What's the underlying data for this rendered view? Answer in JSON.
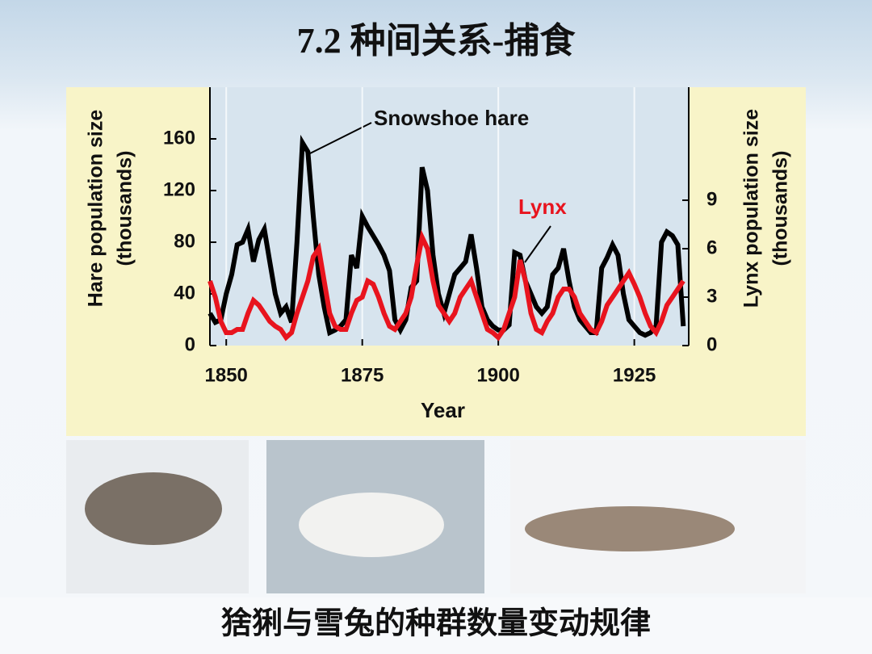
{
  "title": "7.2  种间关系-捕食",
  "caption": "猞猁与雪兔的种群数量变动规律",
  "chart_data": {
    "type": "line",
    "xlabel": "Year",
    "ylabel": [
      "Hare population size",
      "(thousands)"
    ],
    "y2label": [
      "Lynx population size",
      "(thousands)"
    ],
    "annotations": [
      "Snowshoe hare",
      "Lynx"
    ],
    "xlim": [
      1847,
      1935
    ],
    "xticks": [
      1850,
      1875,
      1900,
      1925
    ],
    "ylim": [
      0,
      200
    ],
    "yticks": [
      0,
      40,
      80,
      120,
      160
    ],
    "y2lim": [
      0,
      16
    ],
    "y2ticks": [
      0,
      3,
      6,
      9
    ],
    "grid": "x",
    "x": [
      1847,
      1848,
      1849,
      1850,
      1851,
      1852,
      1853,
      1854,
      1855,
      1856,
      1857,
      1858,
      1859,
      1860,
      1861,
      1862,
      1863,
      1864,
      1865,
      1866,
      1867,
      1868,
      1869,
      1870,
      1871,
      1872,
      1873,
      1874,
      1875,
      1876,
      1877,
      1878,
      1879,
      1880,
      1881,
      1882,
      1883,
      1884,
      1885,
      1886,
      1887,
      1888,
      1889,
      1890,
      1891,
      1892,
      1893,
      1894,
      1895,
      1896,
      1897,
      1898,
      1899,
      1900,
      1901,
      1902,
      1903,
      1904,
      1905,
      1906,
      1907,
      1908,
      1909,
      1910,
      1911,
      1912,
      1913,
      1914,
      1915,
      1916,
      1917,
      1918,
      1919,
      1920,
      1921,
      1922,
      1923,
      1924,
      1925,
      1926,
      1927,
      1928,
      1929,
      1930,
      1931,
      1932,
      1933,
      1934
    ],
    "series": [
      {
        "name": "Snowshoe hare",
        "color": "#000000",
        "values": [
          25,
          18,
          20,
          40,
          55,
          78,
          80,
          90,
          65,
          82,
          90,
          65,
          40,
          25,
          30,
          18,
          80,
          157,
          150,
          100,
          55,
          30,
          10,
          12,
          15,
          20,
          70,
          60,
          100,
          92,
          85,
          78,
          70,
          58,
          20,
          12,
          20,
          45,
          50,
          138,
          120,
          70,
          40,
          25,
          40,
          55,
          60,
          65,
          86,
          60,
          30,
          20,
          15,
          12,
          12,
          16,
          72,
          70,
          50,
          40,
          30,
          25,
          30,
          55,
          60,
          75,
          50,
          30,
          20,
          15,
          10,
          10,
          60,
          68,
          78,
          70,
          40,
          20,
          15,
          10,
          8,
          10,
          15,
          80,
          88,
          85,
          78,
          15
        ]
      },
      {
        "name": "Lynx",
        "color": "#e8141e",
        "axis": "y2",
        "values": [
          4,
          3,
          1.5,
          0.8,
          0.8,
          1,
          1,
          2,
          2.8,
          2.5,
          2,
          1.5,
          1.2,
          1,
          0.5,
          0.8,
          2,
          3,
          4,
          5.5,
          6,
          4,
          2,
          1.2,
          1,
          1,
          2,
          2.8,
          3,
          4,
          3.8,
          3,
          2,
          1.2,
          1,
          1.5,
          2,
          3,
          5,
          6.7,
          6,
          4,
          2.5,
          2,
          1.5,
          2,
          3,
          3.5,
          4,
          3,
          2,
          1,
          0.8,
          0.5,
          1,
          2,
          3,
          5.3,
          4,
          2,
          1,
          0.8,
          1.5,
          2,
          3,
          3.5,
          3.5,
          3,
          2,
          1.5,
          1,
          0.8,
          1.5,
          2.5,
          3,
          3.5,
          4,
          4.5,
          3.8,
          3,
          2,
          1.2,
          0.8,
          1.5,
          2.5,
          3,
          3.5,
          4
        ]
      }
    ]
  }
}
